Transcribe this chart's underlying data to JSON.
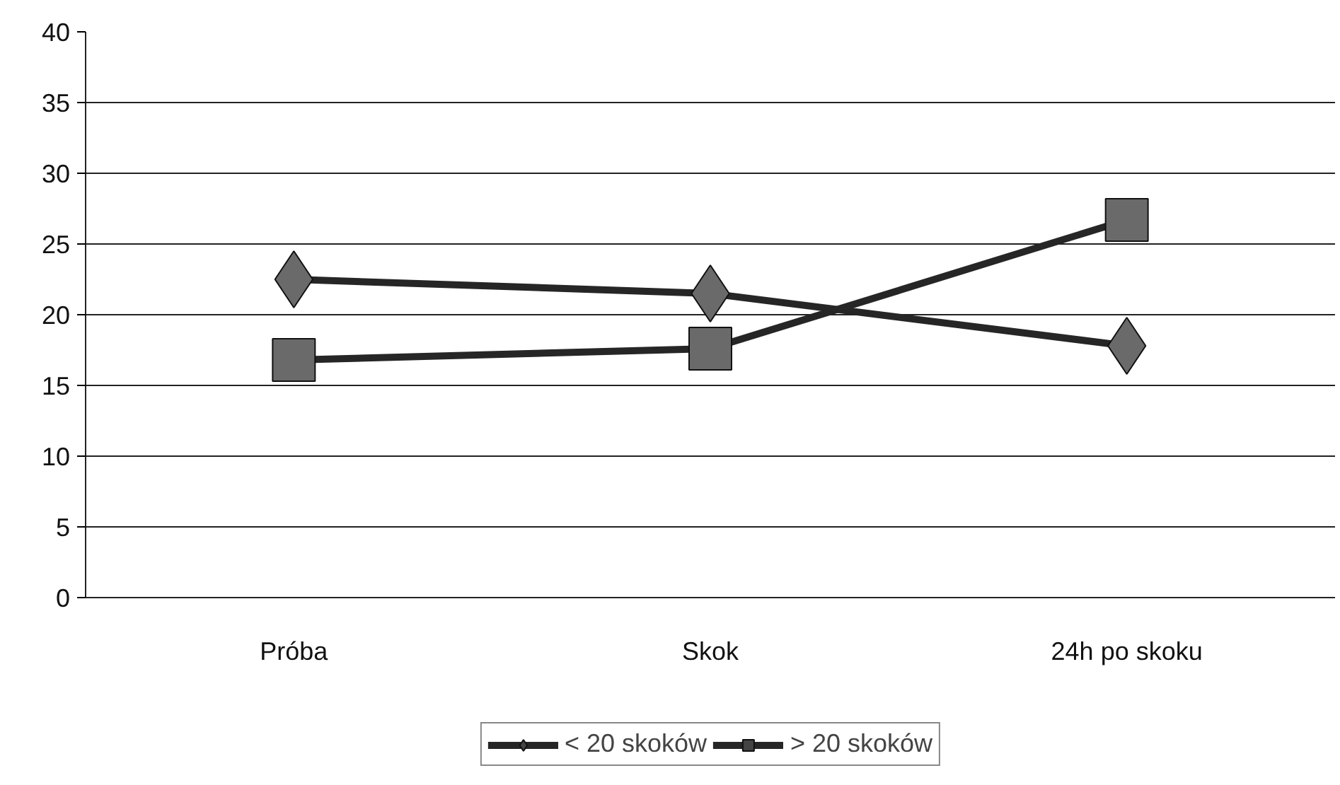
{
  "chart_data": {
    "type": "line",
    "categories": [
      "Próba",
      "Skok",
      "24h po skoku"
    ],
    "series": [
      {
        "name": "< 20 skoków",
        "color": "#262626",
        "marker": "diamond",
        "values": [
          22.5,
          21.5,
          17.8
        ]
      },
      {
        "name": "> 20 skoków",
        "color": "#262626",
        "marker": "square",
        "values": [
          16.8,
          17.6,
          26.7
        ]
      }
    ],
    "ylim": [
      0,
      40
    ],
    "yticks": [
      0,
      5,
      10,
      15,
      20,
      25,
      30,
      35,
      40
    ],
    "grid": "y",
    "legend": "bottom",
    "line_style": "solid"
  }
}
